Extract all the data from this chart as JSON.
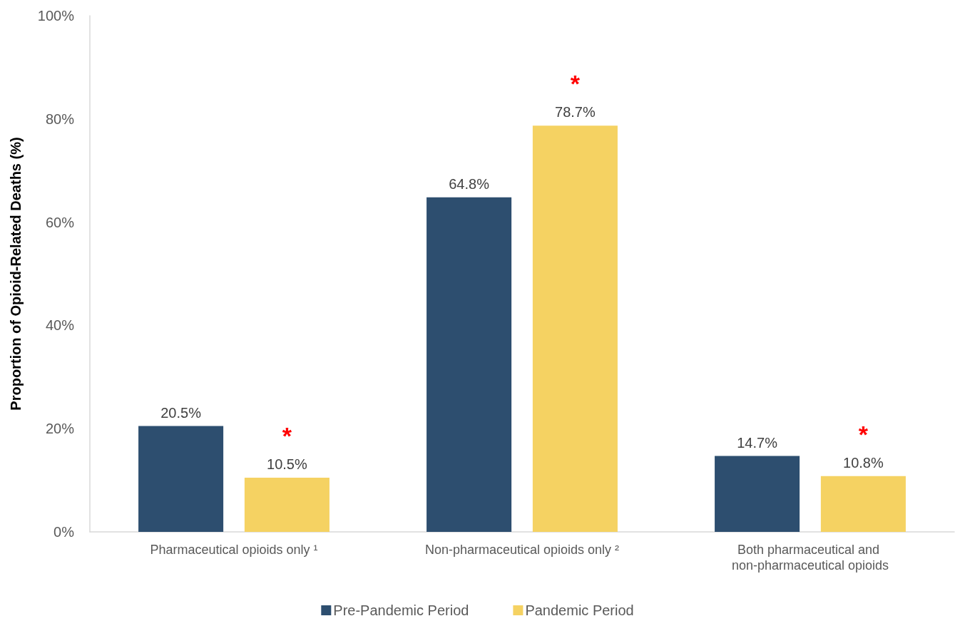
{
  "chart_data": {
    "type": "bar",
    "ylabel": "Proportion of Opioid-Related Deaths (%)",
    "categories": [
      "Pharmaceutical opioids only ¹",
      "Non-pharmaceutical opioids only ²",
      "Both pharmaceutical and non-pharmaceutical opioids"
    ],
    "series": [
      {
        "name": "Pre-Pandemic Period",
        "color": "#2d4e6f",
        "values": [
          20.5,
          64.8,
          14.7
        ],
        "value_labels": [
          "20.5%",
          "64.8%",
          "14.7%"
        ]
      },
      {
        "name": "Pandemic Period",
        "color": "#f5d262",
        "values": [
          10.5,
          78.7,
          10.8
        ],
        "value_labels": [
          "10.5%",
          "78.7%",
          "10.8%"
        ]
      }
    ],
    "ylim": [
      0,
      100
    ],
    "yticks": [
      {
        "value": 0,
        "label": "0%"
      },
      {
        "value": 20,
        "label": "20%"
      },
      {
        "value": 40,
        "label": "40%"
      },
      {
        "value": 60,
        "label": "60%"
      },
      {
        "value": 80,
        "label": "80%"
      },
      {
        "value": 100,
        "label": "100%"
      }
    ],
    "annotations": [
      "*",
      "*",
      "*"
    ],
    "grid": false,
    "legend": "bottom"
  }
}
